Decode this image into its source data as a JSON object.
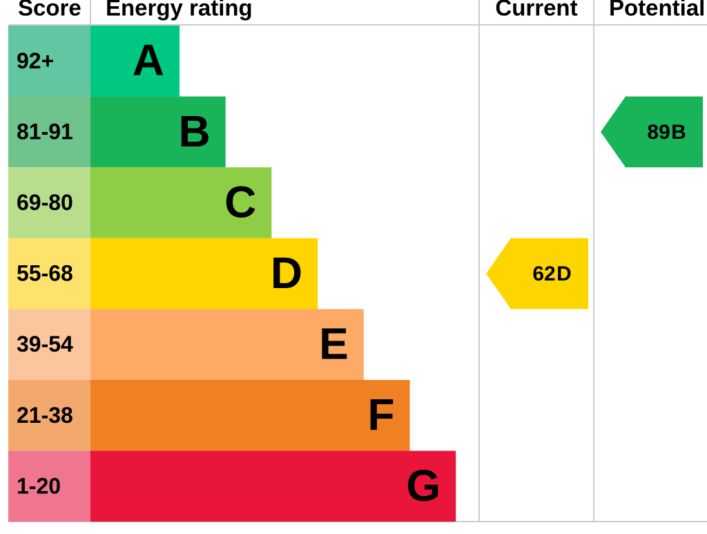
{
  "header": {
    "score": "Score",
    "rating": "Energy rating",
    "current": "Current",
    "potential": "Potential"
  },
  "rows": [
    {
      "score": "92+",
      "band": "A"
    },
    {
      "score": "81-91",
      "band": "B"
    },
    {
      "score": "69-80",
      "band": "C"
    },
    {
      "score": "55-68",
      "band": "D"
    },
    {
      "score": "39-54",
      "band": "E"
    },
    {
      "score": "21-38",
      "band": "F"
    },
    {
      "score": "1-20",
      "band": "G"
    }
  ],
  "current": {
    "score": 62,
    "band": "D"
  },
  "potential": {
    "score": 89,
    "band": "B"
  }
}
